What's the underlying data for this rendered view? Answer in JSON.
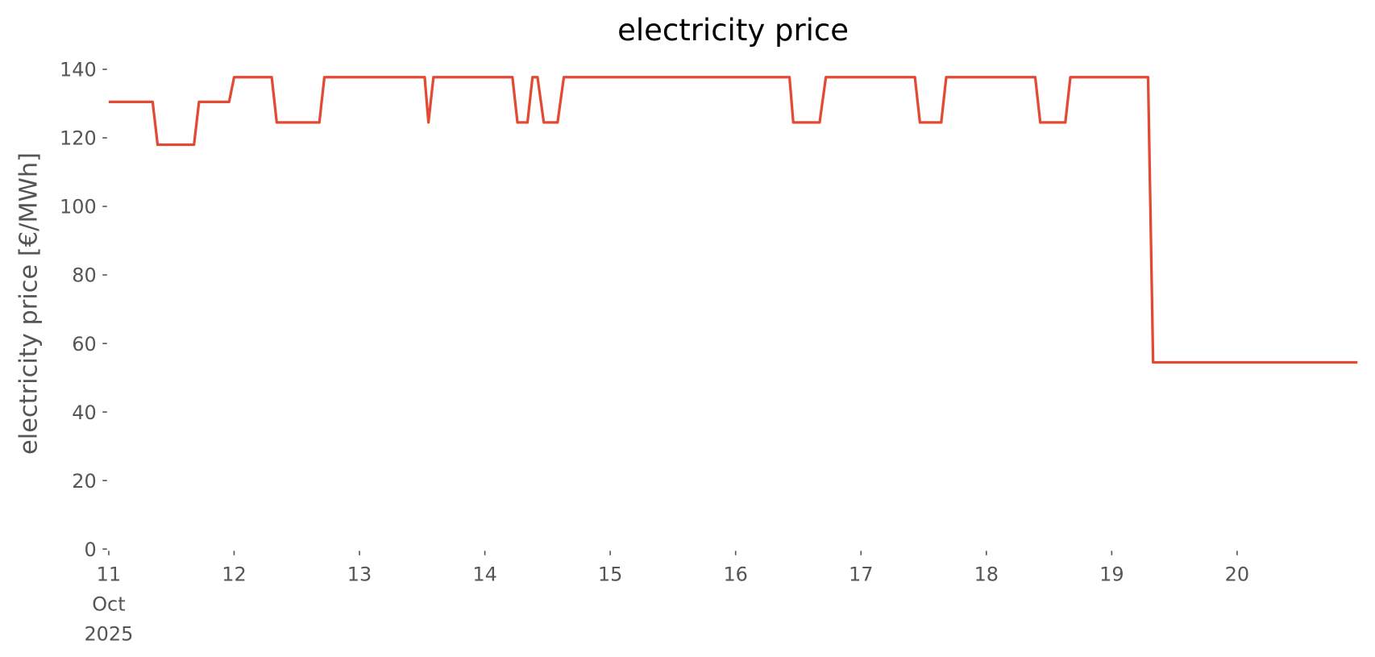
{
  "chart_data": {
    "type": "line",
    "title": "electricity price",
    "y_label": "electricity price [€/MWh]",
    "color": "#e24a33",
    "x": [
      11.0,
      11.35,
      11.39,
      11.68,
      11.72,
      11.96,
      12.0,
      12.3,
      12.34,
      12.68,
      12.72,
      13.52,
      13.55,
      13.59,
      14.22,
      14.26,
      14.34,
      14.38,
      14.42,
      14.47,
      14.58,
      14.63,
      16.43,
      16.46,
      16.67,
      16.72,
      17.43,
      17.47,
      17.64,
      17.68,
      18.39,
      18.43,
      18.63,
      18.67,
      19.29,
      19.33,
      20.96
    ],
    "values": [
      130.5,
      130.5,
      118,
      118,
      130.5,
      130.5,
      137.7,
      137.7,
      124.5,
      124.5,
      137.7,
      137.7,
      124.5,
      137.7,
      137.7,
      124.5,
      124.5,
      137.7,
      137.7,
      124.5,
      124.5,
      137.7,
      137.7,
      124.5,
      124.5,
      137.7,
      137.7,
      124.5,
      124.5,
      137.7,
      137.7,
      124.5,
      124.5,
      137.7,
      137.7,
      54.5,
      54.5
    ],
    "xlim": [
      11.0,
      20.96
    ],
    "xticks": [
      {
        "value": 11,
        "label": "11\nOct\n2025"
      },
      12,
      13,
      14,
      15,
      16,
      17,
      18,
      19,
      20
    ],
    "ylim": [
      0,
      140
    ],
    "yticks": [
      0,
      20,
      40,
      60,
      80,
      100,
      120,
      140
    ],
    "grid": false
  }
}
